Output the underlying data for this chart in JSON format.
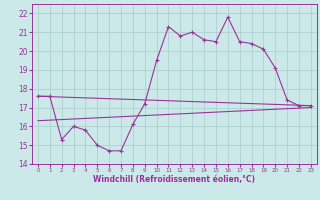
{
  "title": "",
  "xlabel": "Windchill (Refroidissement éolien,°C)",
  "ylabel": "",
  "background_color": "#cce9e9",
  "line_color": "#993399",
  "xlim": [
    -0.5,
    23.5
  ],
  "ylim": [
    14,
    22.5
  ],
  "yticks": [
    14,
    15,
    16,
    17,
    18,
    19,
    20,
    21,
    22
  ],
  "xticks": [
    0,
    1,
    2,
    3,
    4,
    5,
    6,
    7,
    8,
    9,
    10,
    11,
    12,
    13,
    14,
    15,
    16,
    17,
    18,
    19,
    20,
    21,
    22,
    23
  ],
  "line1_x": [
    0,
    1,
    2,
    3,
    4,
    5,
    6,
    7,
    8,
    9,
    10,
    11,
    12,
    13,
    14,
    15,
    16,
    17,
    18,
    19,
    20,
    21,
    22,
    23
  ],
  "line1_y": [
    17.6,
    17.6,
    15.3,
    16.0,
    15.8,
    15.0,
    14.7,
    14.7,
    16.1,
    17.2,
    19.5,
    21.3,
    20.8,
    21.0,
    20.6,
    20.5,
    21.8,
    20.5,
    20.4,
    20.1,
    19.1,
    17.4,
    17.1,
    17.1
  ],
  "line2_x": [
    0,
    23
  ],
  "line2_y": [
    17.6,
    17.1
  ],
  "line3_x": [
    0,
    23
  ],
  "line3_y": [
    16.3,
    17.0
  ],
  "grid_color": "#aacccc",
  "marker": "+"
}
